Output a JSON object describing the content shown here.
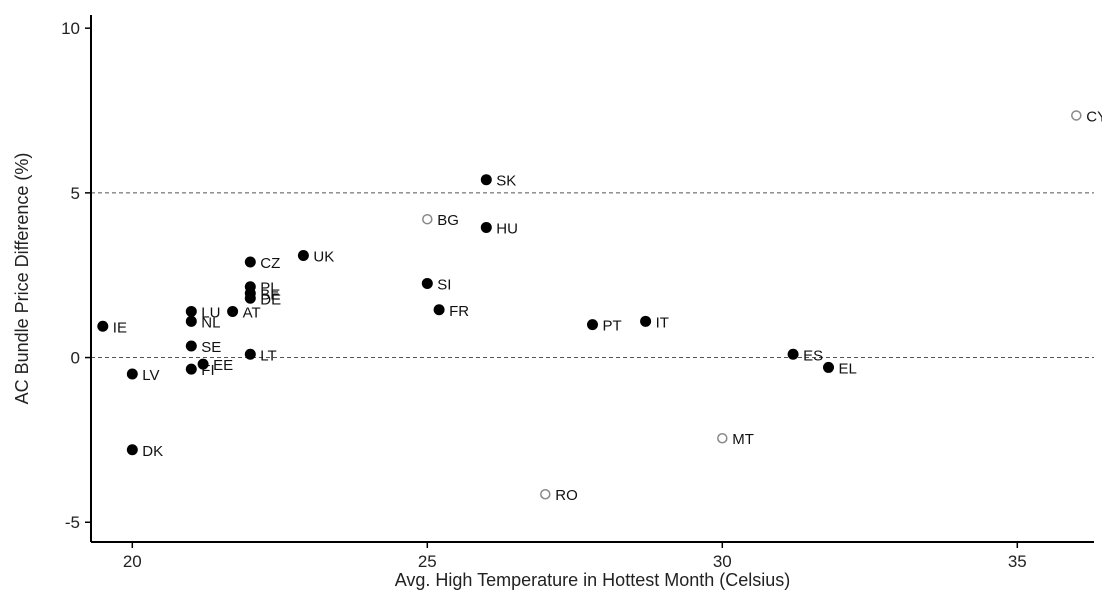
{
  "chart_data": {
    "type": "scatter",
    "title": "",
    "xlabel": "Avg. High Temperature in Hottest Month (Celsius)",
    "ylabel": "AC Bundle Price Difference (%)",
    "xlim": [
      19.3,
      36.3
    ],
    "ylim": [
      -5.6,
      10.4
    ],
    "x_ticks": [
      20,
      25,
      30,
      35
    ],
    "y_ticks": [
      -5,
      0,
      5,
      10
    ],
    "reference_lines_y": [
      0,
      5
    ],
    "grid": false,
    "series": [
      {
        "marker": "filled",
        "points": [
          {
            "label": "IE",
            "x": 19.5,
            "y": 0.95
          },
          {
            "label": "LV",
            "x": 20.0,
            "y": -0.5
          },
          {
            "label": "DK",
            "x": 20.0,
            "y": -2.8
          },
          {
            "label": "LU",
            "x": 21.0,
            "y": 1.4
          },
          {
            "label": "NL",
            "x": 21.0,
            "y": 1.1
          },
          {
            "label": "SE",
            "x": 21.0,
            "y": 0.35
          },
          {
            "label": "FI",
            "x": 21.0,
            "y": -0.35
          },
          {
            "label": "EE",
            "x": 21.2,
            "y": -0.2
          },
          {
            "label": "AT",
            "x": 21.7,
            "y": 1.4
          },
          {
            "label": "CZ",
            "x": 22.0,
            "y": 2.9
          },
          {
            "label": "PL",
            "x": 22.0,
            "y": 2.15
          },
          {
            "label": "BE",
            "x": 22.0,
            "y": 1.95
          },
          {
            "label": "DE",
            "x": 22.0,
            "y": 1.8
          },
          {
            "label": "LT",
            "x": 22.0,
            "y": 0.1
          },
          {
            "label": "UK",
            "x": 22.9,
            "y": 3.1
          },
          {
            "label": "SI",
            "x": 25.0,
            "y": 2.25
          },
          {
            "label": "FR",
            "x": 25.2,
            "y": 1.45
          },
          {
            "label": "SK",
            "x": 26.0,
            "y": 5.4
          },
          {
            "label": "HU",
            "x": 26.0,
            "y": 3.95
          },
          {
            "label": "PT",
            "x": 27.8,
            "y": 1.0
          },
          {
            "label": "IT",
            "x": 28.7,
            "y": 1.1
          },
          {
            "label": "ES",
            "x": 31.2,
            "y": 0.1
          },
          {
            "label": "EL",
            "x": 31.8,
            "y": -0.3
          }
        ]
      },
      {
        "marker": "hollow",
        "points": [
          {
            "label": "BG",
            "x": 25.0,
            "y": 4.2
          },
          {
            "label": "RO",
            "x": 27.0,
            "y": -4.15
          },
          {
            "label": "MT",
            "x": 30.0,
            "y": -2.45
          },
          {
            "label": "CY",
            "x": 36.0,
            "y": 7.35
          }
        ]
      }
    ]
  }
}
